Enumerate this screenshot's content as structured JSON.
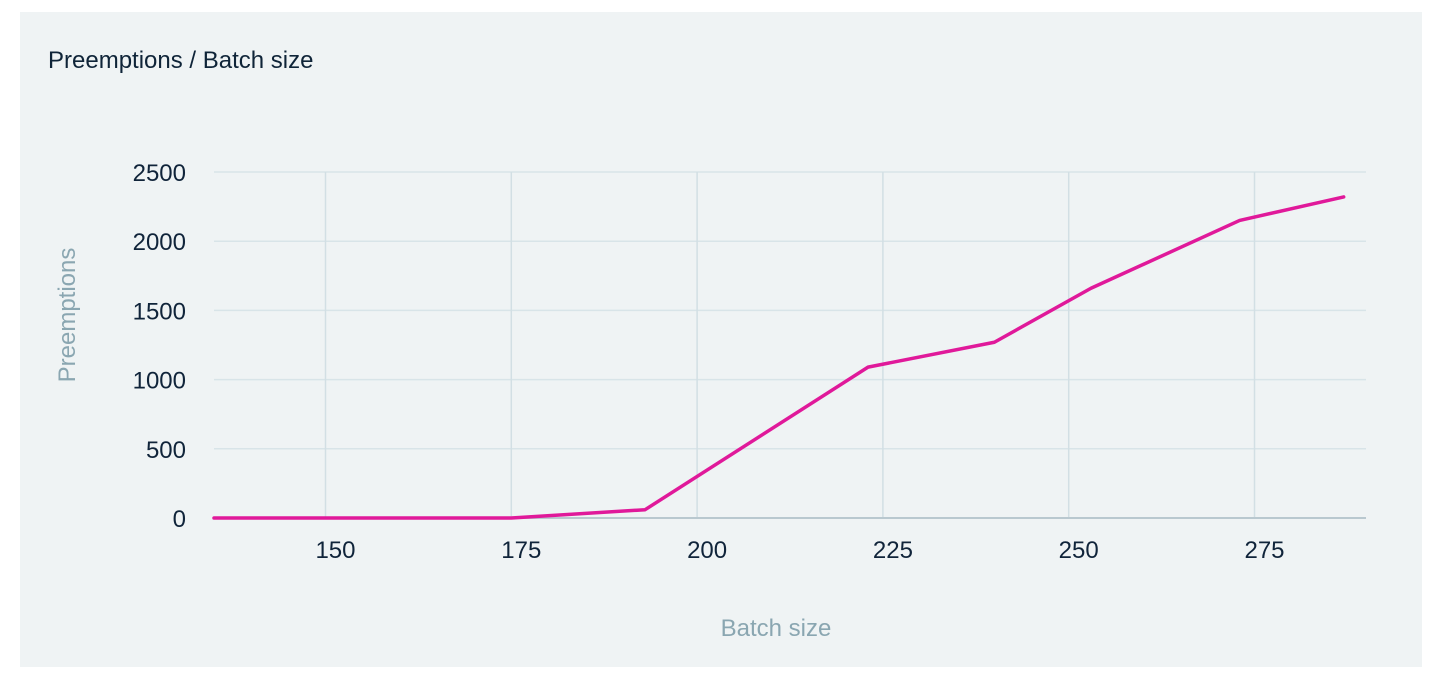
{
  "chart_data": {
    "type": "line",
    "title": "Preemptions / Batch size",
    "xlabel": "Batch size",
    "ylabel": "Preemptions",
    "xlim": [
      135,
      290
    ],
    "ylim": [
      0,
      2500
    ],
    "x_ticks": [
      150,
      175,
      200,
      225,
      250,
      275
    ],
    "y_ticks": [
      0,
      500,
      1000,
      1500,
      2000,
      2500
    ],
    "grid": true,
    "legend": "none",
    "series": [
      {
        "color": "#e0199a",
        "x": [
          135,
          175,
          193,
          223,
          240,
          253,
          273,
          287
        ],
        "y": [
          0,
          0,
          60,
          1090,
          1270,
          1660,
          2150,
          2320
        ]
      }
    ]
  }
}
